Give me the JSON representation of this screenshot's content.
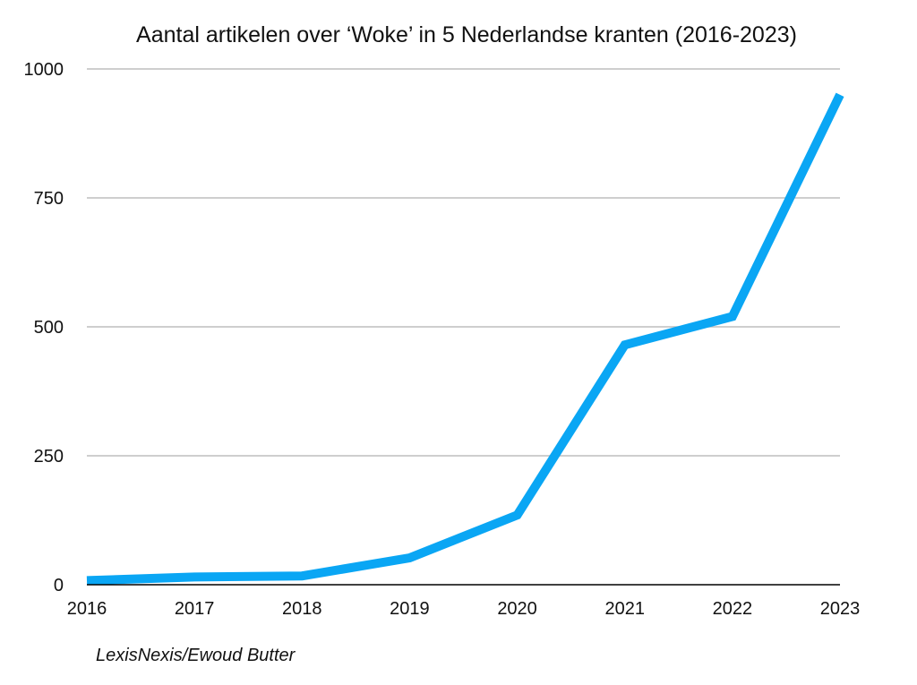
{
  "chart_data": {
    "type": "line",
    "title": "Aantal artikelen over ‘Woke’ in 5 Nederlandse kranten (2016-2023)",
    "source": "LexisNexis/Ewoud Butter",
    "xlabel": "",
    "ylabel": "",
    "categories": [
      "2016",
      "2017",
      "2018",
      "2019",
      "2020",
      "2021",
      "2022",
      "2023"
    ],
    "series": [
      {
        "values": [
          8,
          15,
          17,
          52,
          135,
          465,
          520,
          950
        ],
        "color": "#0aa6f4"
      }
    ],
    "ylim": [
      0,
      1000
    ],
    "yticks": [
      "0",
      "250",
      "500",
      "750",
      "1000"
    ],
    "grid": true,
    "legend": "none"
  }
}
